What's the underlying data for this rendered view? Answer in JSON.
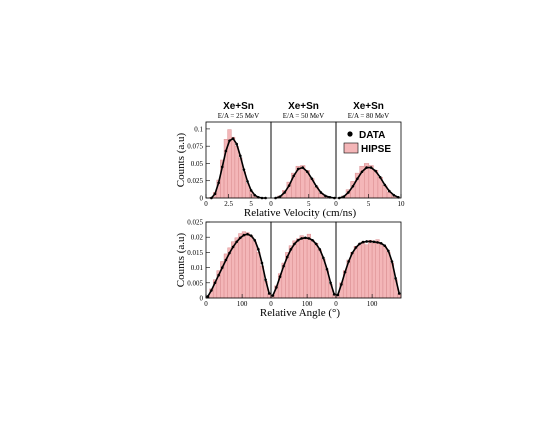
{
  "chart_data": {
    "type": "bar",
    "columns": [
      {
        "title": "Xe+Sn",
        "subtitle": "E/A = 25 MeV"
      },
      {
        "title": "Xe+Sn",
        "subtitle": "E/A = 50 MeV"
      },
      {
        "title": "Xe+Sn",
        "subtitle": "E/A = 80 MeV"
      }
    ],
    "legend": {
      "placement": "top-right",
      "entries": [
        {
          "label": "DATA",
          "marker": "dot"
        },
        {
          "label": "HIPSE",
          "marker": "filled-box"
        }
      ]
    },
    "colors": {
      "hipse_fill": "#f4b6b8",
      "hipse_edge": "#d98c8f",
      "data": "#000000"
    },
    "rows": [
      {
        "ylabel": "Counts (a.u)",
        "xlabel": "Relative Velocity  (cm/ns)",
        "ylim": [
          0,
          0.11
        ],
        "yticks": [
          "0",
          "0.025",
          "0.05",
          "0.075",
          "0.1"
        ],
        "ytick_values": [
          0,
          0.025,
          0.05,
          0.075,
          0.1
        ],
        "panels": [
          {
            "xlim": [
              0,
              7.2
            ],
            "xticks": [
              "0",
              "2.5",
              "5"
            ],
            "xtick_values": [
              0,
              2.5,
              5
            ],
            "series": [
              {
                "name": "DATA",
                "x": [
                  0.6,
                  1.0,
                  1.4,
                  1.8,
                  2.2,
                  2.6,
                  3.0,
                  3.4,
                  3.8,
                  4.2,
                  4.6,
                  5.0,
                  5.4,
                  5.8,
                  6.2,
                  6.6
                ],
                "y": [
                  0.0,
                  0.006,
                  0.022,
                  0.045,
                  0.068,
                  0.083,
                  0.086,
                  0.078,
                  0.061,
                  0.041,
                  0.024,
                  0.011,
                  0.004,
                  0.001,
                  0.0,
                  0.0
                ]
              },
              {
                "name": "HIPSE",
                "x": [
                  0.6,
                  1.0,
                  1.4,
                  1.8,
                  2.2,
                  2.6,
                  3.0,
                  3.4,
                  3.8,
                  4.2,
                  4.6,
                  5.0,
                  5.4,
                  5.8,
                  6.2,
                  6.6
                ],
                "y": [
                  0.001,
                  0.008,
                  0.026,
                  0.055,
                  0.085,
                  0.099,
                  0.088,
                  0.075,
                  0.058,
                  0.038,
                  0.021,
                  0.009,
                  0.003,
                  0.001,
                  0.0,
                  0.0
                ]
              }
            ]
          },
          {
            "xlim": [
              0,
              8.6
            ],
            "xticks": [
              "0",
              "5"
            ],
            "xtick_values": [
              0,
              5
            ],
            "series": [
              {
                "name": "DATA",
                "x": [
                  0.6,
                  1.2,
                  1.8,
                  2.4,
                  3.0,
                  3.6,
                  4.2,
                  4.8,
                  5.4,
                  6.0,
                  6.6,
                  7.2,
                  7.8,
                  8.4
                ],
                "y": [
                  0.0,
                  0.002,
                  0.008,
                  0.018,
                  0.032,
                  0.042,
                  0.044,
                  0.038,
                  0.028,
                  0.017,
                  0.008,
                  0.003,
                  0.001,
                  0.0
                ]
              },
              {
                "name": "HIPSE",
                "x": [
                  0.6,
                  1.2,
                  1.8,
                  2.4,
                  3.0,
                  3.6,
                  4.2,
                  4.8,
                  5.4,
                  6.0,
                  6.6,
                  7.2,
                  7.8,
                  8.4
                ],
                "y": [
                  0.0,
                  0.003,
                  0.011,
                  0.023,
                  0.036,
                  0.046,
                  0.047,
                  0.04,
                  0.028,
                  0.016,
                  0.007,
                  0.002,
                  0.0,
                  0.0
                ]
              }
            ]
          },
          {
            "xlim": [
              0,
              10
            ],
            "xticks": [
              "0",
              "5",
              "10"
            ],
            "xtick_values": [
              0,
              5,
              10
            ],
            "series": [
              {
                "name": "DATA",
                "x": [
                  0.5,
                  1.2,
                  1.9,
                  2.6,
                  3.3,
                  4.0,
                  4.7,
                  5.4,
                  6.1,
                  6.8,
                  7.5,
                  8.2,
                  8.9,
                  9.6
                ],
                "y": [
                  0.0,
                  0.002,
                  0.008,
                  0.017,
                  0.028,
                  0.038,
                  0.044,
                  0.044,
                  0.039,
                  0.03,
                  0.019,
                  0.01,
                  0.004,
                  0.001
                ]
              },
              {
                "name": "HIPSE",
                "x": [
                  0.5,
                  1.2,
                  1.9,
                  2.6,
                  3.3,
                  4.0,
                  4.7,
                  5.4,
                  6.1,
                  6.8,
                  7.5,
                  8.2,
                  8.9,
                  9.6
                ],
                "y": [
                  0.0,
                  0.003,
                  0.012,
                  0.024,
                  0.036,
                  0.046,
                  0.05,
                  0.047,
                  0.04,
                  0.03,
                  0.018,
                  0.008,
                  0.003,
                  0.0
                ]
              }
            ]
          }
        ]
      },
      {
        "ylabel": "Counts (a.u)",
        "xlabel": "Relative Angle  (°)",
        "ylim": [
          0,
          0.025
        ],
        "yticks": [
          "0",
          "0.005",
          "0.01",
          "0.015",
          "0.02",
          "0.025"
        ],
        "ytick_values": [
          0,
          0.005,
          0.01,
          0.015,
          0.02,
          0.025
        ],
        "panels": [
          {
            "xlim": [
              0,
              180
            ],
            "xticks": [
              "0",
              "100"
            ],
            "xtick_values": [
              0,
              100
            ],
            "series": [
              {
                "name": "DATA",
                "x": [
                  5,
                  15,
                  25,
                  35,
                  45,
                  55,
                  65,
                  75,
                  85,
                  95,
                  105,
                  115,
                  125,
                  135,
                  145,
                  155,
                  165,
                  175
                ],
                "y": [
                  0.0005,
                  0.0025,
                  0.005,
                  0.0075,
                  0.01,
                  0.0125,
                  0.0148,
                  0.0168,
                  0.0185,
                  0.0198,
                  0.0207,
                  0.021,
                  0.0205,
                  0.019,
                  0.016,
                  0.0115,
                  0.006,
                  0.0015
                ]
              },
              {
                "name": "HIPSE",
                "x": [
                  5,
                  15,
                  25,
                  35,
                  45,
                  55,
                  65,
                  75,
                  85,
                  95,
                  105,
                  115,
                  125,
                  135,
                  145,
                  155,
                  165,
                  175
                ],
                "y": [
                  0.0006,
                  0.003,
                  0.006,
                  0.009,
                  0.012,
                  0.0145,
                  0.0165,
                  0.0185,
                  0.0198,
                  0.0212,
                  0.0218,
                  0.0215,
                  0.0205,
                  0.0185,
                  0.015,
                  0.0105,
                  0.0055,
                  0.0012
                ]
              }
            ]
          },
          {
            "xlim": [
              0,
              180
            ],
            "xticks": [
              "0",
              "100"
            ],
            "xtick_values": [
              0,
              100
            ],
            "series": [
              {
                "name": "DATA",
                "x": [
                  5,
                  15,
                  25,
                  35,
                  45,
                  55,
                  65,
                  75,
                  85,
                  95,
                  105,
                  115,
                  125,
                  135,
                  145,
                  155,
                  165,
                  175
                ],
                "y": [
                  0.0008,
                  0.0035,
                  0.007,
                  0.0105,
                  0.0135,
                  0.016,
                  0.0178,
                  0.019,
                  0.0196,
                  0.0198,
                  0.0196,
                  0.019,
                  0.0178,
                  0.016,
                  0.0132,
                  0.0095,
                  0.005,
                  0.0012
                ]
              },
              {
                "name": "HIPSE",
                "x": [
                  5,
                  15,
                  25,
                  35,
                  45,
                  55,
                  65,
                  75,
                  85,
                  95,
                  105,
                  115,
                  125,
                  135,
                  145,
                  155,
                  165,
                  175
                ],
                "y": [
                  0.001,
                  0.004,
                  0.008,
                  0.0115,
                  0.015,
                  0.0172,
                  0.0188,
                  0.0195,
                  0.0205,
                  0.02,
                  0.021,
                  0.019,
                  0.018,
                  0.0158,
                  0.0128,
                  0.009,
                  0.0045,
                  0.001
                ]
              }
            ]
          },
          {
            "xlim": [
              0,
              180
            ],
            "xticks": [
              "0",
              "100"
            ],
            "xtick_values": [
              0,
              100
            ],
            "series": [
              {
                "name": "DATA",
                "x": [
                  5,
                  15,
                  25,
                  35,
                  45,
                  55,
                  65,
                  75,
                  85,
                  95,
                  105,
                  115,
                  125,
                  135,
                  145,
                  155,
                  165,
                  175
                ],
                "y": [
                  0.001,
                  0.0045,
                  0.0085,
                  0.012,
                  0.0148,
                  0.0166,
                  0.0178,
                  0.0184,
                  0.0186,
                  0.0186,
                  0.0185,
                  0.0183,
                  0.018,
                  0.0172,
                  0.0155,
                  0.012,
                  0.0065,
                  0.0015
                ]
              },
              {
                "name": "HIPSE",
                "x": [
                  5,
                  15,
                  25,
                  35,
                  45,
                  55,
                  65,
                  75,
                  85,
                  95,
                  105,
                  115,
                  125,
                  135,
                  145,
                  155,
                  165,
                  175
                ],
                "y": [
                  0.0012,
                  0.005,
                  0.009,
                  0.0125,
                  0.015,
                  0.017,
                  0.0175,
                  0.0185,
                  0.0175,
                  0.019,
                  0.018,
                  0.0192,
                  0.0178,
                  0.017,
                  0.015,
                  0.0115,
                  0.006,
                  0.0012
                ]
              }
            ]
          }
        ]
      }
    ]
  }
}
